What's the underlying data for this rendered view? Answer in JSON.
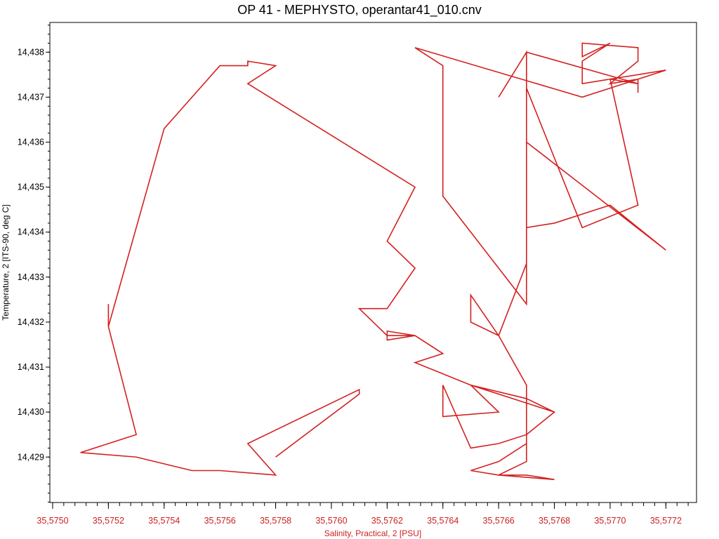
{
  "colors": {
    "series_line": "#d42020",
    "x_axis_text": "#cc2020",
    "y_axis_text": "#000000",
    "frame": "#000000",
    "background": "#ffffff"
  },
  "chart_data": {
    "type": "line",
    "title": "OP 41 - MEPHYSTO, operantar41_010.cnv",
    "xlabel": "Salinity, Practical, 2 [PSU]",
    "ylabel": "Temperature, 2 [ITS-90, deg C]",
    "xlim": [
      35.57499,
      35.57731
    ],
    "ylim": [
      14.42799,
      14.43866
    ],
    "grid": false,
    "legend": "none",
    "x_ticks": [
      35.575,
      35.5752,
      35.5754,
      35.5756,
      35.5758,
      35.576,
      35.5762,
      35.5764,
      35.5766,
      35.5768,
      35.577,
      35.5772
    ],
    "x_tick_labels": [
      "35,5750",
      "35,5752",
      "35,5754",
      "35,5756",
      "35,5758",
      "35,5760",
      "35,5762",
      "35,5764",
      "35,5766",
      "35,5768",
      "35,5770",
      "35,5772"
    ],
    "y_ticks": [
      14.429,
      14.43,
      14.431,
      14.432,
      14.433,
      14.434,
      14.435,
      14.436,
      14.437,
      14.438
    ],
    "y_tick_labels": [
      "14,429",
      "14,430",
      "14,431",
      "14,432",
      "14,433",
      "14,434",
      "14,435",
      "14,436",
      "14,437",
      "14,438"
    ],
    "series": [
      {
        "x": [
          35.5758,
          35.5761,
          35.5761,
          35.5757,
          35.5758,
          35.5756,
          35.5755,
          35.5753,
          35.5751,
          35.5753,
          35.5752,
          35.5752,
          35.5752,
          35.5754,
          35.5756,
          35.5757,
          35.5757,
          35.5758,
          35.5757,
          35.5763,
          35.5762,
          35.5763,
          35.5762,
          35.5761,
          35.5762,
          35.5763,
          35.5762,
          35.5762,
          35.5763,
          35.5764,
          35.5763,
          35.5765,
          35.5768,
          35.5767,
          35.5766,
          35.5765,
          35.5765,
          35.5764,
          35.5764,
          35.5766,
          35.5765,
          35.5767,
          35.5768,
          35.5767,
          35.5767,
          35.5766,
          35.5767,
          35.5768,
          35.5766,
          35.5765,
          35.5766,
          35.5767,
          35.5767,
          35.5766,
          35.5765,
          35.5765,
          35.5766,
          35.5767,
          35.5767,
          35.5767,
          35.5768,
          35.577,
          35.5772,
          35.5767,
          35.5767,
          35.5769,
          35.5771,
          35.577,
          35.5771,
          35.5767,
          35.5767,
          35.5766,
          35.5767,
          35.5767,
          35.5764,
          35.5764,
          35.5763,
          35.5769,
          35.5772,
          35.5769,
          35.5769,
          35.577,
          35.5769,
          35.5769,
          35.5771,
          35.5771,
          35.577,
          35.5771,
          35.5771
        ],
        "y": [
          14.429,
          14.4304,
          14.4305,
          14.4293,
          14.4286,
          14.4287,
          14.4287,
          14.429,
          14.4291,
          14.4295,
          14.4319,
          14.4324,
          14.4319,
          14.4363,
          14.4377,
          14.4377,
          14.4378,
          14.4377,
          14.4373,
          14.435,
          14.4338,
          14.4332,
          14.4323,
          14.4323,
          14.4317,
          14.4317,
          14.4316,
          14.4318,
          14.4317,
          14.4313,
          14.4311,
          14.4306,
          14.43,
          14.4295,
          14.4293,
          14.4292,
          14.4292,
          14.4306,
          14.4299,
          14.43,
          14.4306,
          14.4303,
          14.43,
          14.4295,
          14.4289,
          14.4286,
          14.4286,
          14.4285,
          14.4286,
          14.4287,
          14.4289,
          14.4293,
          14.4306,
          14.4317,
          14.432,
          14.4326,
          14.4317,
          14.4333,
          14.4342,
          14.4341,
          14.4342,
          14.4346,
          14.4336,
          14.436,
          14.4372,
          14.4341,
          14.4346,
          14.4374,
          14.4373,
          14.438,
          14.438,
          14.437,
          14.438,
          14.4324,
          14.4348,
          14.4377,
          14.4381,
          14.437,
          14.4376,
          14.4373,
          14.4378,
          14.4382,
          14.4379,
          14.4382,
          14.4381,
          14.4378,
          14.4373,
          14.4374,
          14.4371
        ]
      }
    ]
  }
}
